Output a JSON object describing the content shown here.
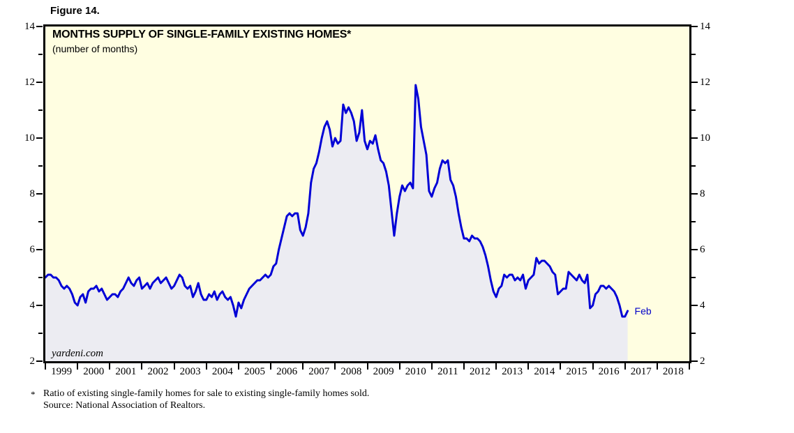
{
  "figure_label": "Figure 14.",
  "chart": {
    "title": "MONTHS SUPPLY OF SINGLE-FAMILY EXISTING HOMES*",
    "subtitle": "(number of months)",
    "watermark": "yardeni.com",
    "end_label": "Feb",
    "colors": {
      "line": "#0000d6",
      "area_fill": "#ececf2",
      "plot_background": "#fffee1",
      "border": "#000000",
      "end_label_text": "#0000c8"
    }
  },
  "footnote": {
    "marker": "*",
    "line1": "Ratio of existing single-family homes for sale to existing single-family homes sold.",
    "line2": "Source: National Association of Realtors."
  },
  "chart_data": {
    "type": "line",
    "title": "MONTHS SUPPLY OF SINGLE-FAMILY EXISTING HOMES*",
    "ylabel": "number of months",
    "ylim": [
      2,
      14
    ],
    "y_major_ticks": [
      2,
      4,
      6,
      8,
      10,
      12,
      14
    ],
    "y_minor_ticks": [
      3,
      5,
      7,
      9,
      11,
      13
    ],
    "x_years": [
      "1999",
      "2000",
      "2001",
      "2002",
      "2003",
      "2004",
      "2005",
      "2006",
      "2007",
      "2008",
      "2009",
      "2010",
      "2011",
      "2012",
      "2013",
      "2014",
      "2015",
      "2016",
      "2017",
      "2018"
    ],
    "grid": false,
    "legend_position": "none",
    "series": [
      {
        "name": "Months supply of single-family existing homes",
        "frequency": "monthly",
        "start": "1999-01",
        "end": "2017-02",
        "end_annotation": "Feb",
        "values": [
          5.0,
          5.1,
          5.1,
          5.0,
          5.0,
          4.9,
          4.7,
          4.6,
          4.7,
          4.6,
          4.4,
          4.1,
          4.0,
          4.3,
          4.4,
          4.1,
          4.5,
          4.6,
          4.6,
          4.7,
          4.5,
          4.6,
          4.4,
          4.2,
          4.3,
          4.4,
          4.4,
          4.3,
          4.5,
          4.6,
          4.8,
          5.0,
          4.8,
          4.7,
          4.9,
          5.0,
          4.6,
          4.7,
          4.8,
          4.6,
          4.8,
          4.9,
          5.0,
          4.8,
          4.9,
          5.0,
          4.8,
          4.6,
          4.7,
          4.9,
          5.1,
          5.0,
          4.7,
          4.6,
          4.7,
          4.3,
          4.5,
          4.8,
          4.4,
          4.2,
          4.2,
          4.4,
          4.3,
          4.5,
          4.2,
          4.4,
          4.5,
          4.3,
          4.2,
          4.3,
          4.0,
          3.6,
          4.1,
          3.9,
          4.2,
          4.4,
          4.6,
          4.7,
          4.8,
          4.9,
          4.9,
          5.0,
          5.1,
          5.0,
          5.1,
          5.4,
          5.5,
          6.0,
          6.4,
          6.8,
          7.2,
          7.3,
          7.2,
          7.3,
          7.3,
          6.7,
          6.5,
          6.8,
          7.3,
          8.4,
          8.9,
          9.1,
          9.5,
          10.0,
          10.4,
          10.6,
          10.3,
          9.7,
          10.0,
          9.8,
          9.9,
          11.2,
          10.9,
          11.1,
          10.9,
          10.6,
          9.9,
          10.2,
          11.0,
          9.9,
          9.6,
          9.9,
          9.8,
          10.1,
          9.6,
          9.2,
          9.1,
          8.8,
          8.3,
          7.4,
          6.5,
          7.3,
          7.9,
          8.3,
          8.1,
          8.3,
          8.4,
          8.2,
          11.9,
          11.4,
          10.4,
          9.9,
          9.4,
          8.1,
          7.9,
          8.2,
          8.4,
          8.9,
          9.2,
          9.1,
          9.2,
          8.5,
          8.3,
          7.9,
          7.3,
          6.8,
          6.4,
          6.4,
          6.3,
          6.5,
          6.4,
          6.4,
          6.3,
          6.1,
          5.8,
          5.4,
          4.9,
          4.5,
          4.3,
          4.6,
          4.7,
          5.1,
          5.0,
          5.1,
          5.1,
          4.9,
          5.0,
          4.9,
          5.1,
          4.6,
          4.9,
          5.0,
          5.1,
          5.7,
          5.5,
          5.6,
          5.6,
          5.5,
          5.4,
          5.2,
          5.1,
          4.4,
          4.5,
          4.6,
          4.6,
          5.2,
          5.1,
          5.0,
          4.9,
          5.1,
          4.9,
          4.8,
          5.1,
          3.9,
          4.0,
          4.4,
          4.5,
          4.7,
          4.7,
          4.6,
          4.7,
          4.6,
          4.5,
          4.3,
          4.0,
          3.6,
          3.6,
          3.8
        ]
      }
    ]
  }
}
